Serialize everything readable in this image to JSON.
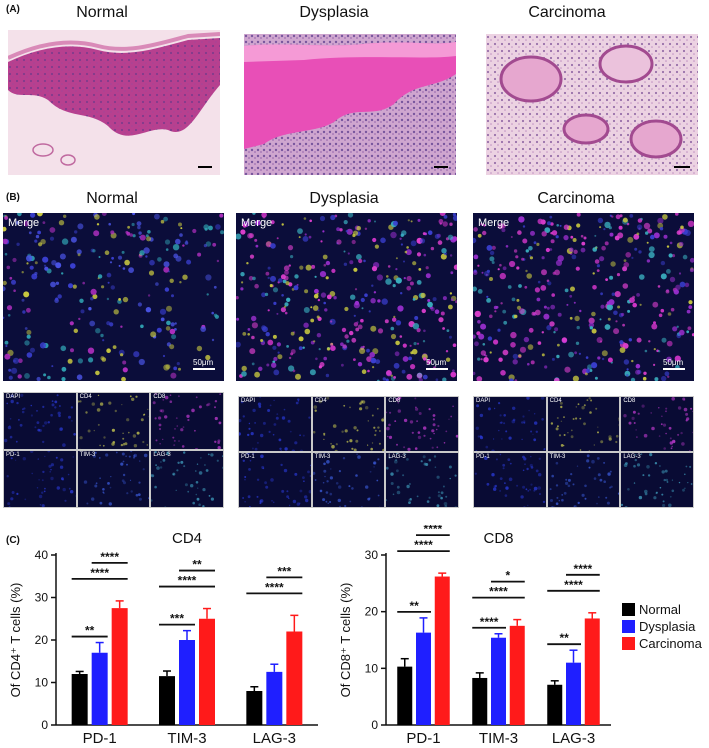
{
  "panelA": {
    "label": "(A)",
    "titles": [
      "Normal",
      "Dysplasia",
      "Carcinoma"
    ]
  },
  "panelB": {
    "label": "(B)",
    "titles": [
      "Normal",
      "Dysplasia",
      "Carcinoma"
    ],
    "merge_label": "Merge",
    "scale_label": "50μm",
    "channels": [
      "DAPI",
      "CD4",
      "CD8",
      "PD-1",
      "TIM-3",
      "LAG-3"
    ]
  },
  "panelC": {
    "label": "(C)",
    "legend": [
      "Normal",
      "Dysplasia",
      "Carcinoma"
    ]
  },
  "colors": {
    "normal": "#000000",
    "dysplasia": "#1f1fff",
    "carcinoma": "#ff1a1a"
  },
  "chart_data": [
    {
      "type": "bar",
      "title": "CD4",
      "ylabel": "Of CD4⁺ T cells (%)",
      "categories": [
        "PD-1",
        "TIM-3",
        "LAG-3"
      ],
      "ylim": [
        0,
        40
      ],
      "yticks": [
        0,
        10,
        20,
        30,
        40
      ],
      "series": [
        {
          "name": "Normal",
          "values": [
            12,
            11.5,
            8
          ],
          "errors": [
            0.6,
            1.2,
            1.0
          ]
        },
        {
          "name": "Dysplasia",
          "values": [
            17,
            20,
            12.5
          ],
          "errors": [
            2.4,
            2.2,
            1.8
          ]
        },
        {
          "name": "Carcinoma",
          "values": [
            27.5,
            25,
            22
          ],
          "errors": [
            1.7,
            2.4,
            3.8
          ]
        }
      ],
      "significance": [
        {
          "group": 0,
          "from": 0,
          "to": 1,
          "label": "**"
        },
        {
          "group": 0,
          "from": 0,
          "to": 2,
          "label": "****"
        },
        {
          "group": 0,
          "from": 1,
          "to": 2,
          "label": "****"
        },
        {
          "group": 1,
          "from": 0,
          "to": 1,
          "label": "***"
        },
        {
          "group": 1,
          "from": 0,
          "to": 2,
          "label": "****"
        },
        {
          "group": 1,
          "from": 1,
          "to": 2,
          "label": "**"
        },
        {
          "group": 2,
          "from": 0,
          "to": 2,
          "label": "****"
        },
        {
          "group": 2,
          "from": 1,
          "to": 2,
          "label": "***"
        }
      ]
    },
    {
      "type": "bar",
      "title": "CD8",
      "ylabel": "Of CD8⁺ T cells (%)",
      "categories": [
        "PD-1",
        "TIM-3",
        "LAG-3"
      ],
      "ylim": [
        0,
        30
      ],
      "yticks": [
        0,
        10,
        20,
        30
      ],
      "series": [
        {
          "name": "Normal",
          "values": [
            10.3,
            8.3,
            7.1
          ],
          "errors": [
            1.4,
            0.9,
            0.7
          ]
        },
        {
          "name": "Dysplasia",
          "values": [
            16.3,
            15.4,
            11
          ],
          "errors": [
            2.6,
            0.7,
            2.2
          ]
        },
        {
          "name": "Carcinoma",
          "values": [
            26.2,
            17.5,
            18.8
          ],
          "errors": [
            0.6,
            1.1,
            1.0
          ]
        }
      ],
      "significance": [
        {
          "group": 0,
          "from": 0,
          "to": 1,
          "label": "**"
        },
        {
          "group": 0,
          "from": 0,
          "to": 2,
          "label": "****"
        },
        {
          "group": 0,
          "from": 1,
          "to": 2,
          "label": "****"
        },
        {
          "group": 1,
          "from": 0,
          "to": 1,
          "label": "****"
        },
        {
          "group": 1,
          "from": 0,
          "to": 2,
          "label": "****"
        },
        {
          "group": 1,
          "from": 1,
          "to": 2,
          "label": "*"
        },
        {
          "group": 2,
          "from": 0,
          "to": 1,
          "label": "**"
        },
        {
          "group": 2,
          "from": 0,
          "to": 2,
          "label": "****"
        },
        {
          "group": 2,
          "from": 1,
          "to": 2,
          "label": "****"
        }
      ]
    }
  ]
}
